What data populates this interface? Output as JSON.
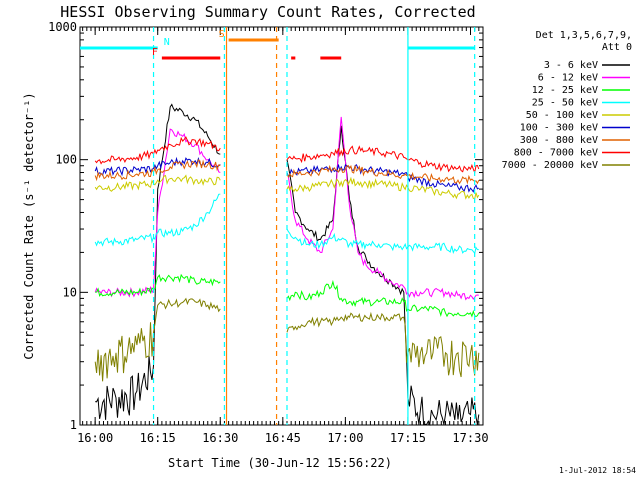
{
  "chart_data": {
    "type": "line",
    "title": "HESSI Observing Summary Count Rates, Corrected",
    "xlabel": "Start Time (30-Jun-12 15:56:22)",
    "ylabel": "Corrected Count Rate (s⁻¹ detector⁻¹)",
    "timestamp": "1-Jul-2012 18:54",
    "y_scale": "log",
    "ylim": [
      1,
      1000
    ],
    "xlim": [
      "15:56:22",
      "17:33:00"
    ],
    "x_ticks": [
      "16:00",
      "16:15",
      "16:30",
      "16:45",
      "17:00",
      "17:15",
      "17:30"
    ],
    "y_ticks": [
      "1",
      "10",
      "100",
      "1000"
    ],
    "legend_header": [
      "Det 1,3,5,6,7,9,",
      "Att 0"
    ],
    "legend_position": "right",
    "x_times": [
      "16:00",
      "16:05",
      "16:10",
      "16:14",
      "16:15",
      "16:18",
      "16:21",
      "16:24",
      "16:27",
      "16:30",
      "16:31",
      "16:46",
      "16:48",
      "16:51",
      "16:54",
      "16:57",
      "16:59",
      "17:01",
      "17:03",
      "17:05",
      "17:08",
      "17:11",
      "17:14",
      "17:15",
      "17:18",
      "17:21",
      "17:24",
      "17:27",
      "17:30",
      "17:32"
    ],
    "series": [
      {
        "name": "3 - 6 keV",
        "color": "#000000",
        "values": [
          1.5,
          1.6,
          1.8,
          2.8,
          60,
          250,
          230,
          200,
          150,
          110,
          null,
          100,
          40,
          30,
          25,
          35,
          180,
          50,
          22,
          18,
          14,
          12,
          10,
          1.6,
          1.3,
          1.2,
          1.2,
          1.1,
          1.2,
          1.2
        ]
      },
      {
        "name": "6 - 12 keV",
        "color": "#ff00ff",
        "values": [
          10,
          10,
          10,
          10.5,
          40,
          170,
          150,
          130,
          100,
          80,
          null,
          80,
          35,
          25,
          20,
          30,
          210,
          45,
          20,
          16,
          14,
          12,
          11,
          10,
          10,
          10,
          10,
          9.5,
          9.5,
          9.5
        ]
      },
      {
        "name": "12 - 25 keV",
        "color": "#00ff00",
        "values": [
          10,
          10,
          10,
          10.5,
          13,
          13,
          13,
          12,
          12,
          12,
          null,
          9,
          10,
          9,
          10,
          12,
          9,
          8.5,
          8.5,
          8.5,
          8.5,
          8.5,
          8.5,
          7.5,
          7.5,
          7.5,
          7,
          7,
          7,
          7
        ]
      },
      {
        "name": "25 - 50 keV",
        "color": "#00ffff",
        "values": [
          24,
          24,
          25,
          26,
          28,
          28,
          29,
          32,
          40,
          55,
          null,
          30,
          26,
          23,
          23,
          26,
          25,
          23,
          23,
          23,
          23,
          22,
          22,
          22,
          22,
          22,
          22,
          21,
          21,
          21
        ]
      },
      {
        "name": "50 - 100 keV",
        "color": "#cccc00",
        "values": [
          62,
          62,
          64,
          66,
          70,
          72,
          72,
          70,
          68,
          70,
          null,
          60,
          60,
          62,
          64,
          66,
          68,
          68,
          68,
          66,
          66,
          64,
          62,
          62,
          60,
          58,
          56,
          55,
          54,
          54
        ]
      },
      {
        "name": "100 - 300 keV",
        "color": "#0000cc",
        "values": [
          82,
          82,
          84,
          86,
          90,
          95,
          98,
          98,
          95,
          92,
          null,
          80,
          80,
          82,
          84,
          86,
          88,
          88,
          86,
          84,
          82,
          80,
          78,
          74,
          70,
          66,
          63,
          62,
          61,
          61
        ]
      },
      {
        "name": "300 - 800 keV",
        "color": "#e06000",
        "values": [
          76,
          76,
          78,
          80,
          84,
          88,
          92,
          94,
          92,
          90,
          null,
          78,
          78,
          80,
          82,
          84,
          86,
          86,
          84,
          82,
          80,
          78,
          76,
          76,
          74,
          72,
          72,
          70,
          70,
          70
        ]
      },
      {
        "name": "800 - 7000 keV",
        "color": "#ff0000",
        "values": [
          98,
          100,
          104,
          110,
          118,
          130,
          138,
          140,
          132,
          122,
          null,
          100,
          102,
          105,
          108,
          112,
          116,
          118,
          118,
          116,
          114,
          110,
          104,
          100,
          95,
          90,
          88,
          86,
          85,
          85
        ]
      },
      {
        "name": "7000 - 20000 keV",
        "color": "#808000",
        "values": [
          3,
          3.5,
          4,
          5,
          8,
          8.2,
          8.4,
          8.5,
          8,
          7.5,
          null,
          5,
          5.5,
          6,
          6,
          6,
          6.5,
          6.5,
          6.5,
          6.5,
          6.5,
          6.5,
          6.5,
          3.5,
          3.5,
          3.5,
          3.5,
          3.5,
          3.5,
          3.5
        ]
      }
    ],
    "flags": [
      {
        "label": "N",
        "color": "#00ffff",
        "segments": [
          [
            "15:56:22",
            "16:15"
          ],
          [
            "17:15",
            "17:31"
          ]
        ]
      },
      {
        "label": "F",
        "color": "#ff0000",
        "segments": [
          [
            "16:16",
            "16:30"
          ],
          [
            "16:47",
            "16:48"
          ],
          [
            "16:54",
            "16:59"
          ]
        ]
      },
      {
        "label": "S",
        "color": "#ff8000",
        "segments": [
          [
            "16:32",
            "16:44"
          ]
        ]
      }
    ],
    "vertical_markers": [
      {
        "time": "16:14",
        "color": "#00ffff",
        "style": "dashed"
      },
      {
        "time": "16:31",
        "color": "#00ffff",
        "style": "dashed"
      },
      {
        "time": "16:31:30",
        "color": "#ff8000",
        "style": "solid"
      },
      {
        "time": "16:43:30",
        "color": "#ff8000",
        "style": "dashed"
      },
      {
        "time": "16:46",
        "color": "#00ffff",
        "style": "dashed"
      },
      {
        "time": "17:15",
        "color": "#00ffff",
        "style": "solid"
      },
      {
        "time": "17:31",
        "color": "#00ffff",
        "style": "dashed"
      }
    ]
  }
}
